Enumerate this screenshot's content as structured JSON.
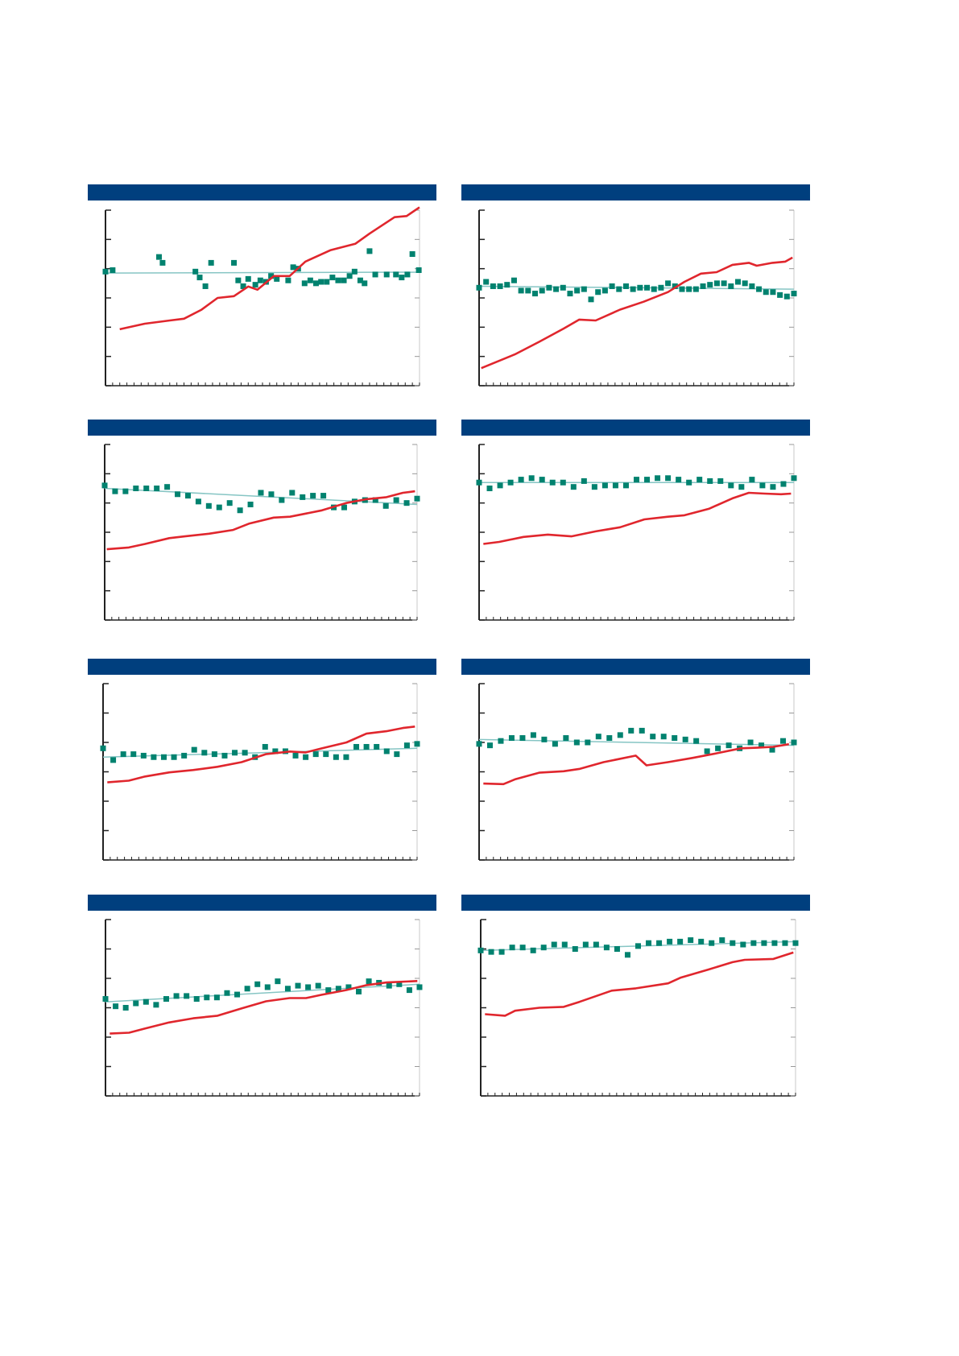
{
  "colors": {
    "header": "#003f7e",
    "line": "#e0262d",
    "points": "#00826f",
    "trend": "#86c5c4",
    "axis": "#222222"
  },
  "chart_data": [
    {
      "type": "line+scatter",
      "xlim": [
        0,
        44
      ],
      "ylim": [
        0,
        6
      ],
      "grid": false,
      "line": [
        [
          2,
          1.93
        ],
        [
          5.5,
          2.12
        ],
        [
          9,
          2.23
        ],
        [
          11,
          2.29
        ],
        [
          13.4,
          2.59
        ],
        [
          15.7,
          3.0
        ],
        [
          18,
          3.06
        ],
        [
          20,
          3.39
        ],
        [
          21.3,
          3.28
        ],
        [
          23.6,
          3.75
        ],
        [
          25.8,
          3.75
        ],
        [
          28,
          4.24
        ],
        [
          31.5,
          4.63
        ],
        [
          35,
          4.85
        ],
        [
          37,
          5.2
        ],
        [
          40.5,
          5.76
        ],
        [
          42.2,
          5.8
        ],
        [
          44,
          6.1
        ]
      ],
      "points": [
        [
          0,
          3.9
        ],
        [
          1,
          3.95
        ],
        [
          7.5,
          4.4
        ],
        [
          8,
          4.2
        ],
        [
          12.6,
          3.9
        ],
        [
          13.2,
          3.7
        ],
        [
          14,
          3.4
        ],
        [
          14.8,
          4.2
        ],
        [
          18,
          4.2
        ],
        [
          18.6,
          3.6
        ],
        [
          19.3,
          3.4
        ],
        [
          20,
          3.65
        ],
        [
          21,
          3.45
        ],
        [
          21.7,
          3.6
        ],
        [
          22.5,
          3.55
        ],
        [
          23.2,
          3.75
        ],
        [
          24,
          3.65
        ],
        [
          25.6,
          3.6
        ],
        [
          26.3,
          4.05
        ],
        [
          27,
          4.0
        ],
        [
          27.9,
          3.5
        ],
        [
          28.7,
          3.6
        ],
        [
          29.5,
          3.5
        ],
        [
          30.2,
          3.55
        ],
        [
          31,
          3.55
        ],
        [
          31.8,
          3.7
        ],
        [
          32.6,
          3.6
        ],
        [
          33.4,
          3.6
        ],
        [
          34.2,
          3.75
        ],
        [
          34.9,
          3.9
        ],
        [
          35.7,
          3.6
        ],
        [
          36.3,
          3.5
        ],
        [
          37,
          4.6
        ],
        [
          37.8,
          3.8
        ],
        [
          39.4,
          3.8
        ],
        [
          40.7,
          3.8
        ],
        [
          41.5,
          3.7
        ],
        [
          42.3,
          3.8
        ],
        [
          43,
          4.5
        ],
        [
          43.9,
          3.95
        ]
      ],
      "trend": [
        3.85,
        3.88
      ]
    },
    {
      "type": "line+scatter",
      "xlim": [
        0,
        44
      ],
      "ylim": [
        0,
        6
      ],
      "grid": false,
      "line": [
        [
          0.3,
          0.6
        ],
        [
          5,
          1.07
        ],
        [
          8.4,
          1.5
        ],
        [
          11.8,
          1.95
        ],
        [
          14,
          2.26
        ],
        [
          16.3,
          2.23
        ],
        [
          19.7,
          2.6
        ],
        [
          23,
          2.87
        ],
        [
          26.4,
          3.2
        ],
        [
          28.7,
          3.55
        ],
        [
          31,
          3.83
        ],
        [
          33.2,
          3.88
        ],
        [
          35.4,
          4.13
        ],
        [
          37.7,
          4.2
        ],
        [
          38.8,
          4.1
        ],
        [
          41,
          4.2
        ],
        [
          42.8,
          4.24
        ],
        [
          43.8,
          4.38
        ]
      ],
      "points": [
        3.35,
        3.55,
        3.4,
        3.4,
        3.45,
        3.6,
        3.25,
        3.25,
        3.15,
        3.25,
        3.35,
        3.3,
        3.35,
        3.15,
        3.25,
        3.3,
        2.95,
        3.2,
        3.25,
        3.4,
        3.3,
        3.4,
        3.3,
        3.35,
        3.35,
        3.3,
        3.35,
        3.5,
        3.4,
        3.3,
        3.3,
        3.3,
        3.4,
        3.45,
        3.5,
        3.5,
        3.4,
        3.55,
        3.5,
        3.4,
        3.3,
        3.2,
        3.2,
        3.1,
        3.05,
        3.15
      ],
      "trend": [
        3.4,
        3.3
      ]
    },
    {
      "type": "line+scatter",
      "xlim": [
        0,
        44
      ],
      "ylim": [
        0,
        6
      ],
      "grid": false,
      "line": [
        [
          0.3,
          2.42
        ],
        [
          3.4,
          2.48
        ],
        [
          5.7,
          2.6
        ],
        [
          9.1,
          2.8
        ],
        [
          11.3,
          2.86
        ],
        [
          14.7,
          2.95
        ],
        [
          18.1,
          3.08
        ],
        [
          20.4,
          3.3
        ],
        [
          23.8,
          3.5
        ],
        [
          26.1,
          3.53
        ],
        [
          28.4,
          3.64
        ],
        [
          30.6,
          3.75
        ],
        [
          34,
          4.0
        ],
        [
          36.9,
          4.13
        ],
        [
          39.7,
          4.2
        ],
        [
          42,
          4.35
        ],
        [
          43.7,
          4.4
        ]
      ],
      "points": [
        4.6,
        4.4,
        4.4,
        4.5,
        4.5,
        4.5,
        4.55,
        4.3,
        4.25,
        4.05,
        3.9,
        3.85,
        4.0,
        3.75,
        3.95,
        4.35,
        4.3,
        4.1,
        4.35,
        4.2,
        4.25,
        4.25,
        3.85,
        3.85,
        4.05,
        4.1,
        4.1,
        3.9,
        4.1,
        4.0,
        4.15
      ],
      "trend": [
        4.5,
        3.95
      ]
    },
    {
      "type": "line+scatter",
      "xlim": [
        0,
        44
      ],
      "ylim": [
        0,
        6
      ],
      "grid": false,
      "line": [
        [
          0.6,
          2.6
        ],
        [
          2.8,
          2.67
        ],
        [
          6.2,
          2.84
        ],
        [
          9.6,
          2.92
        ],
        [
          12.9,
          2.86
        ],
        [
          16.3,
          3.03
        ],
        [
          19.7,
          3.17
        ],
        [
          23.1,
          3.44
        ],
        [
          26.4,
          3.53
        ],
        [
          28.7,
          3.58
        ],
        [
          32.1,
          3.8
        ],
        [
          35.4,
          4.16
        ],
        [
          37.7,
          4.35
        ],
        [
          39.9,
          4.32
        ],
        [
          42.2,
          4.3
        ],
        [
          43.6,
          4.32
        ]
      ],
      "points": [
        4.7,
        4.5,
        4.6,
        4.7,
        4.8,
        4.85,
        4.8,
        4.7,
        4.7,
        4.55,
        4.75,
        4.55,
        4.6,
        4.6,
        4.6,
        4.8,
        4.8,
        4.85,
        4.85,
        4.8,
        4.7,
        4.8,
        4.75,
        4.75,
        4.6,
        4.55,
        4.8,
        4.6,
        4.55,
        4.65,
        4.85
      ],
      "trend": [
        4.7,
        4.7
      ]
    },
    {
      "type": "line+scatter",
      "xlim": [
        0,
        44
      ],
      "ylim": [
        0,
        6
      ],
      "grid": false,
      "line": [
        [
          0.6,
          2.64
        ],
        [
          3.6,
          2.7
        ],
        [
          5.9,
          2.84
        ],
        [
          9.3,
          2.98
        ],
        [
          12.6,
          3.06
        ],
        [
          16,
          3.17
        ],
        [
          19.4,
          3.33
        ],
        [
          22.8,
          3.6
        ],
        [
          26.2,
          3.69
        ],
        [
          28.4,
          3.66
        ],
        [
          30.7,
          3.8
        ],
        [
          34.1,
          4.0
        ],
        [
          36.9,
          4.3
        ],
        [
          39.7,
          4.38
        ],
        [
          42,
          4.49
        ],
        [
          43.7,
          4.54
        ]
      ],
      "points": [
        3.8,
        3.4,
        3.6,
        3.6,
        3.55,
        3.5,
        3.5,
        3.5,
        3.55,
        3.75,
        3.65,
        3.6,
        3.55,
        3.65,
        3.65,
        3.5,
        3.85,
        3.7,
        3.7,
        3.55,
        3.5,
        3.6,
        3.6,
        3.5,
        3.5,
        3.85,
        3.85,
        3.85,
        3.7,
        3.6,
        3.9,
        3.95
      ],
      "trend": [
        3.5,
        3.8
      ]
    },
    {
      "type": "line+scatter",
      "xlim": [
        0,
        44
      ],
      "ylim": [
        0,
        6
      ],
      "grid": false,
      "line": [
        [
          0.6,
          2.6
        ],
        [
          3.4,
          2.58
        ],
        [
          5.1,
          2.75
        ],
        [
          8.4,
          2.97
        ],
        [
          11.8,
          3.02
        ],
        [
          14.1,
          3.1
        ],
        [
          17.4,
          3.33
        ],
        [
          21.9,
          3.55
        ],
        [
          23.4,
          3.22
        ],
        [
          26.4,
          3.33
        ],
        [
          29.8,
          3.47
        ],
        [
          33.2,
          3.63
        ],
        [
          36.6,
          3.8
        ],
        [
          38.8,
          3.82
        ],
        [
          41.1,
          3.85
        ],
        [
          43.3,
          3.94
        ]
      ],
      "points": [
        3.95,
        3.9,
        4.05,
        4.15,
        4.15,
        4.25,
        4.1,
        3.95,
        4.15,
        4.0,
        4.0,
        4.2,
        4.15,
        4.25,
        4.4,
        4.4,
        4.2,
        4.2,
        4.15,
        4.1,
        4.05,
        3.7,
        3.8,
        3.9,
        3.8,
        4.0,
        3.9,
        3.75,
        4.05,
        4.0
      ],
      "trend": [
        4.1,
        3.9
      ]
    },
    {
      "type": "line+scatter",
      "xlim": [
        0,
        44
      ],
      "ylim": [
        0,
        6
      ],
      "grid": false,
      "line": [
        [
          0.6,
          2.12
        ],
        [
          3.3,
          2.15
        ],
        [
          5.5,
          2.29
        ],
        [
          8.9,
          2.5
        ],
        [
          12.3,
          2.64
        ],
        [
          15.7,
          2.73
        ],
        [
          19.1,
          2.98
        ],
        [
          22.5,
          3.22
        ],
        [
          25.8,
          3.33
        ],
        [
          28.1,
          3.33
        ],
        [
          30.3,
          3.44
        ],
        [
          33.7,
          3.6
        ],
        [
          36.6,
          3.77
        ],
        [
          39.4,
          3.86
        ],
        [
          43.7,
          3.91
        ]
      ],
      "points": [
        3.3,
        3.05,
        3.0,
        3.15,
        3.2,
        3.1,
        3.3,
        3.4,
        3.4,
        3.3,
        3.35,
        3.35,
        3.5,
        3.45,
        3.65,
        3.8,
        3.7,
        3.9,
        3.65,
        3.75,
        3.7,
        3.75,
        3.6,
        3.65,
        3.7,
        3.55,
        3.9,
        3.85,
        3.75,
        3.8,
        3.6,
        3.7
      ],
      "trend": [
        3.2,
        3.8
      ]
    },
    {
      "type": "line+scatter",
      "xlim": [
        0,
        44
      ],
      "ylim": [
        0,
        6
      ],
      "grid": false,
      "line": [
        [
          0.6,
          2.78
        ],
        [
          3.4,
          2.73
        ],
        [
          4.8,
          2.9
        ],
        [
          8.2,
          3.0
        ],
        [
          11.6,
          3.03
        ],
        [
          13.8,
          3.2
        ],
        [
          18.3,
          3.58
        ],
        [
          21.7,
          3.66
        ],
        [
          26.2,
          3.83
        ],
        [
          27.9,
          4.02
        ],
        [
          31.8,
          4.3
        ],
        [
          35.2,
          4.55
        ],
        [
          36.9,
          4.63
        ],
        [
          40.9,
          4.66
        ],
        [
          43.7,
          4.88
        ]
      ],
      "points": [
        4.95,
        4.9,
        4.9,
        5.05,
        5.05,
        4.95,
        5.05,
        5.15,
        5.15,
        5.0,
        5.15,
        5.15,
        5.05,
        5.0,
        4.8,
        5.1,
        5.2,
        5.2,
        5.25,
        5.25,
        5.3,
        5.25,
        5.2,
        5.3,
        5.2,
        5.15,
        5.2,
        5.2,
        5.2,
        5.2,
        5.2
      ],
      "trend": [
        4.95,
        5.25
      ]
    }
  ]
}
